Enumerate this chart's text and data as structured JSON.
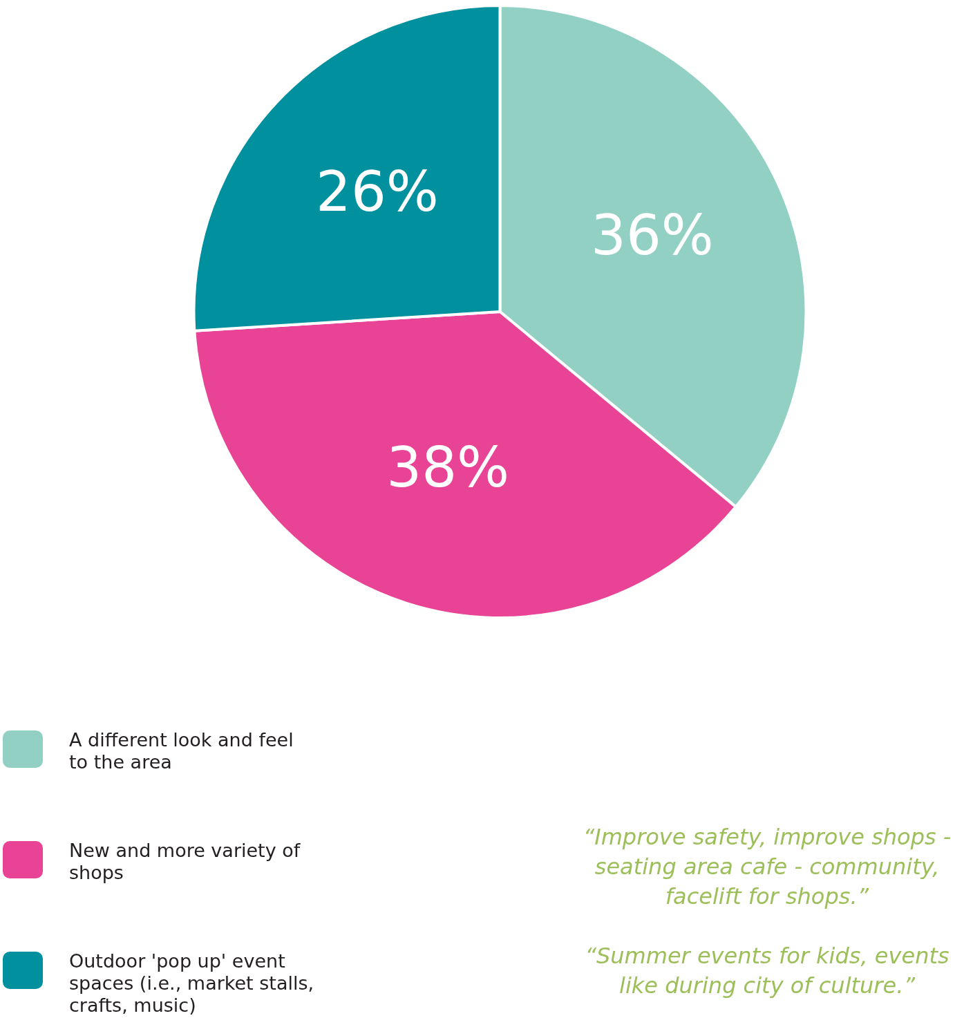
{
  "chart_data": {
    "type": "pie",
    "categories": [
      "A different look and feel to the area",
      "New and more variety of shops",
      "Outdoor 'pop up' event spaces (i.e., market stalls, crafts, music)"
    ],
    "values": [
      36,
      38,
      26
    ],
    "colors": [
      "#92d0c4",
      "#e94396",
      "#00909e"
    ],
    "value_labels": [
      "36%",
      "38%",
      "26%"
    ],
    "legend": "bottom left",
    "annotations": [
      "“Improve safety, improve shops - seating area cafe - community, facelift for shops.”",
      "“Summer events for kids, events like during city of culture.”"
    ]
  }
}
